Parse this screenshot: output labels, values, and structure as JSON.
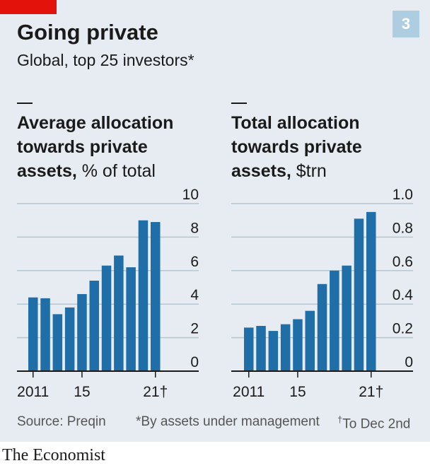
{
  "header": {
    "title": "Going private",
    "subtitle": "Global, top 25 investors*",
    "badge": "3",
    "accent_color": "#e3120b",
    "badge_color": "#afcde1"
  },
  "chart_data": [
    {
      "type": "bar",
      "title_bold": "Average allocation towards private assets,",
      "title_unit": "% of total",
      "categories": [
        "2011",
        "2012",
        "2013",
        "2014",
        "2015",
        "2016",
        "2017",
        "2018",
        "2019",
        "2020",
        "2021"
      ],
      "x_tick_labels": [
        {
          "category": "2011",
          "label": "2011"
        },
        {
          "category": "2015",
          "label": "15"
        },
        {
          "category": "2021",
          "label": "21†"
        }
      ],
      "values": [
        4.4,
        4.35,
        3.4,
        3.8,
        4.6,
        5.4,
        6.3,
        6.9,
        6.2,
        9.0,
        8.9
      ],
      "ylim": [
        0,
        10
      ],
      "y_ticks": [
        {
          "value": 0,
          "label": "0"
        },
        {
          "value": 2,
          "label": "2"
        },
        {
          "value": 4,
          "label": "4"
        },
        {
          "value": 6,
          "label": "6"
        },
        {
          "value": 8,
          "label": "8"
        },
        {
          "value": 10,
          "label": "10"
        }
      ],
      "bar_color": "#1f6ea8",
      "grid": true
    },
    {
      "type": "bar",
      "title_bold": "Total allocation towards private assets,",
      "title_unit": "$trn",
      "categories": [
        "2011",
        "2012",
        "2013",
        "2014",
        "2015",
        "2016",
        "2017",
        "2018",
        "2019",
        "2020",
        "2021"
      ],
      "x_tick_labels": [
        {
          "category": "2011",
          "label": "2011"
        },
        {
          "category": "2015",
          "label": "15"
        },
        {
          "category": "2021",
          "label": "21†"
        }
      ],
      "values": [
        0.26,
        0.27,
        0.24,
        0.28,
        0.31,
        0.36,
        0.52,
        0.6,
        0.63,
        0.91,
        0.95
      ],
      "ylim": [
        0,
        1.0
      ],
      "y_ticks": [
        {
          "value": 0,
          "label": "0"
        },
        {
          "value": 0.2,
          "label": "0.2"
        },
        {
          "value": 0.4,
          "label": "0.4"
        },
        {
          "value": 0.6,
          "label": "0.6"
        },
        {
          "value": 0.8,
          "label": "0.8"
        },
        {
          "value": 1.0,
          "label": "1.0"
        }
      ],
      "bar_color": "#1f6ea8",
      "grid": true
    }
  ],
  "footer": {
    "source": "Source: Preqin",
    "note_star": "*By assets under management",
    "note_dagger_mark": "†",
    "note_dagger": "To Dec 2nd"
  },
  "brand": "The Economist"
}
